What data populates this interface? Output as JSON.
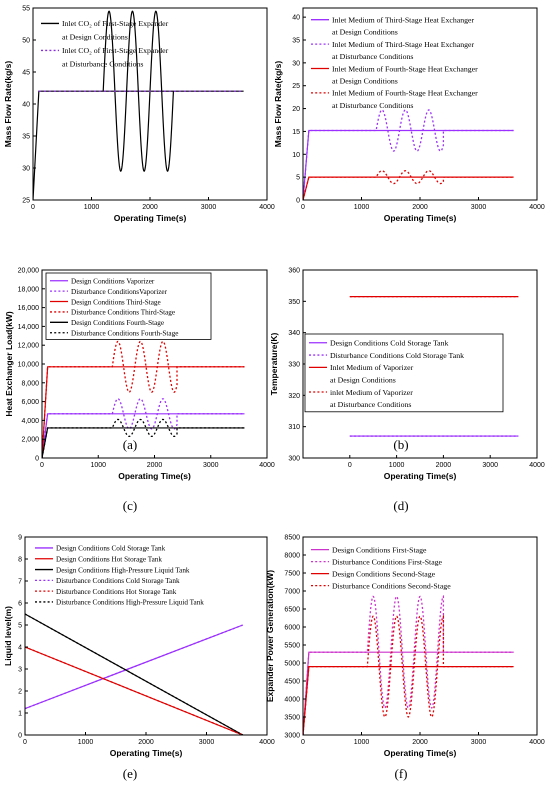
{
  "captions": [
    "(a)",
    "(b)",
    "(c)",
    "(d)",
    "(e)",
    "(f)"
  ],
  "chart_data": [
    {
      "type": "line",
      "xlabel": "Operating Time(s)",
      "ylabel": "Mass Flow Rate(kg/s)",
      "xlim": [
        0,
        4000
      ],
      "ylim": [
        25,
        55
      ],
      "xticks": [
        0,
        1000,
        2000,
        3000,
        4000
      ],
      "yticks": [
        25,
        30,
        35,
        40,
        45,
        50,
        55
      ],
      "legend_position": "top-left",
      "series": [
        {
          "name": "Inlet CO₂ of First-Stage Expander\nat Design Conditions",
          "color": "#000000",
          "dash": "solid",
          "kind": "design",
          "ramp": [
            0,
            25,
            100,
            42
          ],
          "base": 42,
          "end": 3600
        },
        {
          "name": "Inlet CO₂ of First-Stage Expander\nat Disturbance Conditions",
          "color": "#8a2be2",
          "dash": "dotted",
          "kind": "disturb",
          "ramp": [
            0,
            25,
            100,
            42
          ],
          "base": 42,
          "end": 3600,
          "osc": {
            "start": 1200,
            "end": 2400,
            "amp": 12.5,
            "period": 400,
            "drawn": false
          }
        }
      ]
    },
    {
      "type": "line",
      "xlabel": "Operating Time(s)",
      "ylabel": "Mass Flow Rate(kg/s)",
      "xlim": [
        0,
        4000
      ],
      "ylim": [
        0,
        42
      ],
      "xticks": [
        0,
        1000,
        2000,
        3000,
        4000
      ],
      "yticks": [
        0,
        5,
        10,
        15,
        20,
        25,
        30,
        35,
        40
      ],
      "legend_position": "top-right",
      "series": [
        {
          "name": "Inlet Medium of Third-Stage Heat Exchanger\nat Design Conditions",
          "color": "#9b30ff",
          "dash": "solid",
          "kind": "design",
          "ramp": [
            0,
            0,
            100,
            15.2
          ],
          "base": 15.2,
          "end": 3600
        },
        {
          "name": "Inlet Medium of Third-Stage Heat Exchanger\nat Disturbance Conditions",
          "color": "#9b30ff",
          "dash": "dotted",
          "kind": "disturb",
          "ramp": [
            0,
            0,
            100,
            15.2
          ],
          "base": 15.2,
          "end": 3600,
          "osc": {
            "start": 1250,
            "end": 2400,
            "amp": 4.5,
            "period": 400,
            "drawn": true
          }
        },
        {
          "name": "Inlet Medium of Fourth-Stage Heat Exchanger\nat Design Conditions",
          "color": "#e00000",
          "dash": "solid",
          "kind": "design",
          "ramp": [
            0,
            0,
            100,
            5
          ],
          "base": 5,
          "end": 3600
        },
        {
          "name": "Inlet Medium of Fourth-Stage Heat Exchanger\nat Disturbance Conditions",
          "color": "#e00000",
          "dash": "dotted",
          "kind": "disturb",
          "ramp": [
            0,
            0,
            100,
            5
          ],
          "base": 5,
          "end": 3600,
          "osc": {
            "start": 1250,
            "end": 2400,
            "amp": 1.4,
            "period": 400,
            "drawn": true
          }
        }
      ]
    },
    {
      "type": "line",
      "xlabel": "Operating Time(s)",
      "ylabel": "Heat Exchanger Load(kW)",
      "xlim": [
        0,
        4000
      ],
      "ylim": [
        0,
        20000
      ],
      "xticks": [
        0,
        1000,
        2000,
        3000,
        4000
      ],
      "yticks": [
        0,
        2000,
        4000,
        6000,
        8000,
        10000,
        12000,
        14000,
        16000,
        18000,
        20000
      ],
      "ytick_labels": [
        "0",
        "2,000",
        "4,000",
        "6,000",
        "8,000",
        "10,000",
        "12,000",
        "14,000",
        "16,000",
        "18,000",
        "20,000"
      ],
      "legend_position": "top-left",
      "series": [
        {
          "name": "Design Conditions Vaporizer",
          "color": "#9b30ff",
          "dash": "solid",
          "kind": "design",
          "ramp": [
            0,
            0,
            100,
            4700
          ],
          "base": 4700,
          "end": 3600
        },
        {
          "name": "Disturbance ConditionsVaporizer",
          "color": "#9b30ff",
          "dash": "dotted",
          "kind": "disturb",
          "ramp": [
            0,
            0,
            100,
            4700
          ],
          "base": 4700,
          "end": 3600,
          "osc": {
            "start": 1250,
            "end": 2400,
            "amp": 1600,
            "period": 400,
            "drawn": true
          }
        },
        {
          "name": "Design Conditions Third-Stage",
          "color": "#e00000",
          "dash": "solid",
          "kind": "design",
          "ramp": [
            0,
            0,
            100,
            9700
          ],
          "base": 9700,
          "end": 3600
        },
        {
          "name": "Disturbance Conditions Third-Stage",
          "color": "#e00000",
          "dash": "dotted",
          "kind": "disturb",
          "ramp": [
            0,
            0,
            100,
            9700
          ],
          "base": 9700,
          "end": 3600,
          "osc": {
            "start": 1250,
            "end": 2400,
            "amp": 2700,
            "period": 400,
            "drawn": true
          }
        },
        {
          "name": "Design Conditions Fourth-Stage",
          "color": "#000000",
          "dash": "solid",
          "kind": "design",
          "ramp": [
            0,
            0,
            100,
            3200
          ],
          "base": 3200,
          "end": 3600
        },
        {
          "name": "Disturbance Conditions Fourth-Stage",
          "color": "#000000",
          "dash": "dotted",
          "kind": "disturb",
          "ramp": [
            0,
            0,
            100,
            3200
          ],
          "base": 3200,
          "end": 3600,
          "osc": {
            "start": 1250,
            "end": 2400,
            "amp": 900,
            "period": 400,
            "drawn": true
          }
        }
      ]
    },
    {
      "type": "line",
      "xlabel": "Operating Time(s)",
      "ylabel": "Temperature(K)",
      "xlim": [
        -1000,
        4000
      ],
      "ylim": [
        300,
        360
      ],
      "xticks": [
        0,
        1000,
        2000,
        3000,
        4000
      ],
      "yticks": [
        300,
        310,
        320,
        330,
        340,
        350,
        360
      ],
      "legend_position": "center",
      "series": [
        {
          "name": "Design Conditions Cold Storage Tank",
          "color": "#9b30ff",
          "dash": "solid",
          "kind": "design",
          "ramp": [
            0,
            307,
            0,
            307
          ],
          "base": 307,
          "end": 3600
        },
        {
          "name": "Disturbance Conditions Cold Storage Tank",
          "color": "#9b30ff",
          "dash": "dotted",
          "kind": "disturb",
          "ramp": [
            0,
            307,
            0,
            307
          ],
          "base": 307,
          "end": 3600
        },
        {
          "name": "Inlet Medium of Vaporizer\nat Design Conditions",
          "color": "#e00000",
          "dash": "solid",
          "kind": "design",
          "ramp": [
            0,
            351.5,
            0,
            351.5
          ],
          "base": 351.5,
          "end": 3600
        },
        {
          "name": "inlet Medium of Vaporizer\nat Disturbance Conditions",
          "color": "#e00000",
          "dash": "dotted",
          "kind": "disturb",
          "ramp": [
            0,
            351.5,
            0,
            351.5
          ],
          "base": 351.5,
          "end": 3600
        }
      ]
    },
    {
      "type": "line",
      "xlabel": "Operating Time(s)",
      "ylabel": "Liquid level(m)",
      "xlim": [
        0,
        4000
      ],
      "ylim": [
        0,
        9
      ],
      "xticks": [
        0,
        1000,
        2000,
        3000,
        4000
      ],
      "yticks": [
        0,
        1,
        2,
        3,
        4,
        5,
        6,
        7,
        8,
        9
      ],
      "legend_position": "top",
      "series": [
        {
          "name": "Design Conditions Cold Storage Tank",
          "color": "#9b30ff",
          "dash": "solid",
          "kind": "linear",
          "x": [
            0,
            3600
          ],
          "y": [
            1.2,
            5.0
          ]
        },
        {
          "name": "Design Conditions Hot Storage Tank",
          "color": "#e00000",
          "dash": "solid",
          "kind": "linear",
          "x": [
            0,
            3600
          ],
          "y": [
            4.0,
            0.0
          ]
        },
        {
          "name": "Design Conditions High-Pressure Liquid Tank",
          "color": "#000000",
          "dash": "solid",
          "kind": "linear",
          "x": [
            0,
            3600
          ],
          "y": [
            5.5,
            0.0
          ]
        },
        {
          "name": "Disturbance Conditions Cold Storage Tank",
          "color": "#9b30ff",
          "dash": "dotted",
          "kind": "linear",
          "x": [
            0,
            3600
          ],
          "y": [
            1.2,
            5.0
          ]
        },
        {
          "name": "Disturbance Conditions  Hot Storage Tank",
          "color": "#e00000",
          "dash": "dotted",
          "kind": "linear",
          "x": [
            0,
            3600
          ],
          "y": [
            4.0,
            0.0
          ]
        },
        {
          "name": "Disturbance Conditions High-Pressure Liquid Tank",
          "color": "#000000",
          "dash": "dotted",
          "kind": "linear",
          "x": [
            0,
            3600
          ],
          "y": [
            5.5,
            0.0
          ]
        }
      ]
    },
    {
      "type": "line",
      "xlabel": "Operating Time(s)",
      "ylabel": "Expander Power Generation(kW)",
      "xlim": [
        0,
        4000
      ],
      "ylim": [
        3000,
        8500
      ],
      "xticks": [
        0,
        1000,
        2000,
        3000,
        4000
      ],
      "yticks": [
        3000,
        3500,
        4000,
        4500,
        5000,
        5500,
        6000,
        6500,
        7000,
        7500,
        8000,
        8500
      ],
      "legend_position": "top",
      "series": [
        {
          "name": "Design Conditions First-Stage",
          "color": "#cc33cc",
          "dash": "solid",
          "kind": "design",
          "ramp": [
            0,
            3000,
            100,
            5300
          ],
          "base": 5300,
          "end": 3600
        },
        {
          "name": "Disturbance Conditions First-Stage",
          "color": "#cc33cc",
          "dash": "dotted",
          "kind": "disturb",
          "ramp": [
            0,
            3000,
            100,
            5300
          ],
          "base": 5300,
          "end": 3600,
          "osc": {
            "start": 1100,
            "end": 2400,
            "amp": 1550,
            "period": 400,
            "drawn": true
          }
        },
        {
          "name": "Design Conditions Second-Stage",
          "color": "#e00000",
          "dash": "solid",
          "kind": "design",
          "ramp": [
            0,
            3000,
            100,
            4900
          ],
          "base": 4900,
          "end": 3600
        },
        {
          "name": "Disturbance Conditions Second-Stage",
          "color": "#e00000",
          "dash": "dotted",
          "kind": "disturb",
          "ramp": [
            0,
            3000,
            100,
            4900
          ],
          "base": 4900,
          "end": 3600,
          "osc": {
            "start": 1100,
            "end": 2400,
            "amp": 1400,
            "period": 400,
            "drawn": true
          }
        }
      ]
    }
  ]
}
